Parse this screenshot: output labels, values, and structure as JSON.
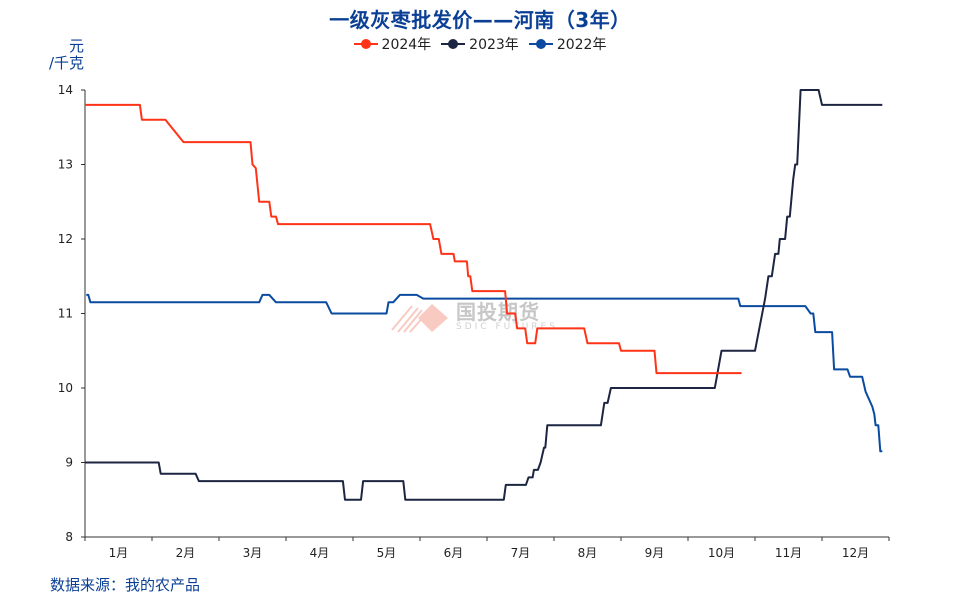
{
  "title": "一级灰枣批发价——河南（3年）",
  "unit_line1": "元",
  "unit_line2": "/千克",
  "source": "数据来源：我的农产品",
  "watermark": {
    "name": "国投期货",
    "sub": "SDIC FUTURES"
  },
  "legend": [
    {
      "label": "2024年",
      "color": "#ff3318"
    },
    {
      "label": "2023年",
      "color": "#1c2541"
    },
    {
      "label": "2022年",
      "color": "#0a4aa0"
    }
  ],
  "chart_data": {
    "type": "line",
    "title": "一级灰枣批发价——河南（3年）",
    "ylabel": "元/千克",
    "xlabel": "",
    "ylim": [
      8,
      14
    ],
    "yticks": [
      8,
      9,
      10,
      11,
      12,
      13,
      14
    ],
    "categories": [
      "1月",
      "2月",
      "3月",
      "4月",
      "5月",
      "6月",
      "7月",
      "8月",
      "9月",
      "10月",
      "11月",
      "12月"
    ],
    "x_unit": "month position (0 = start of Jan, 12 = end of Dec)",
    "grid": false,
    "legend_position": "top",
    "series": [
      {
        "name": "2024年",
        "color": "#ff3318",
        "points": [
          [
            0,
            13.8
          ],
          [
            0.82,
            13.8
          ],
          [
            0.85,
            13.6
          ],
          [
            1.2,
            13.6
          ],
          [
            1.47,
            13.3
          ],
          [
            2.47,
            13.3
          ],
          [
            2.5,
            13.0
          ],
          [
            2.55,
            12.95
          ],
          [
            2.6,
            12.5
          ],
          [
            2.75,
            12.5
          ],
          [
            2.78,
            12.3
          ],
          [
            2.85,
            12.3
          ],
          [
            2.88,
            12.2
          ],
          [
            5.15,
            12.2
          ],
          [
            5.2,
            12.0
          ],
          [
            5.28,
            12.0
          ],
          [
            5.32,
            11.8
          ],
          [
            5.5,
            11.8
          ],
          [
            5.52,
            11.7
          ],
          [
            5.7,
            11.7
          ],
          [
            5.72,
            11.5
          ],
          [
            5.75,
            11.5
          ],
          [
            5.78,
            11.3
          ],
          [
            6.27,
            11.3
          ],
          [
            6.3,
            11.0
          ],
          [
            6.42,
            11.0
          ],
          [
            6.45,
            10.8
          ],
          [
            6.57,
            10.8
          ],
          [
            6.6,
            10.6
          ],
          [
            6.72,
            10.6
          ],
          [
            6.75,
            10.8
          ],
          [
            7.45,
            10.8
          ],
          [
            7.5,
            10.6
          ],
          [
            7.97,
            10.6
          ],
          [
            8.0,
            10.5
          ],
          [
            8.5,
            10.5
          ],
          [
            8.53,
            10.2
          ],
          [
            9.8,
            10.2
          ]
        ]
      },
      {
        "name": "2023年",
        "color": "#1c2541",
        "points": [
          [
            0,
            9.0
          ],
          [
            1.1,
            9.0
          ],
          [
            1.13,
            8.85
          ],
          [
            1.65,
            8.85
          ],
          [
            1.7,
            8.75
          ],
          [
            3.85,
            8.75
          ],
          [
            3.88,
            8.5
          ],
          [
            4.12,
            8.5
          ],
          [
            4.15,
            8.75
          ],
          [
            4.75,
            8.75
          ],
          [
            4.78,
            8.5
          ],
          [
            6.25,
            8.5
          ],
          [
            6.28,
            8.7
          ],
          [
            6.58,
            8.7
          ],
          [
            6.62,
            8.8
          ],
          [
            6.68,
            8.8
          ],
          [
            6.7,
            8.9
          ],
          [
            6.76,
            8.9
          ],
          [
            6.8,
            9.0
          ],
          [
            6.85,
            9.2
          ],
          [
            6.87,
            9.2
          ],
          [
            6.9,
            9.5
          ],
          [
            7.7,
            9.5
          ],
          [
            7.75,
            9.8
          ],
          [
            7.8,
            9.8
          ],
          [
            7.85,
            10.0
          ],
          [
            9.4,
            10.0
          ],
          [
            9.5,
            10.5
          ],
          [
            10.0,
            10.5
          ],
          [
            10.15,
            11.2
          ],
          [
            10.2,
            11.5
          ],
          [
            10.25,
            11.5
          ],
          [
            10.3,
            11.8
          ],
          [
            10.35,
            11.8
          ],
          [
            10.37,
            12.0
          ],
          [
            10.45,
            12.0
          ],
          [
            10.48,
            12.3
          ],
          [
            10.52,
            12.3
          ],
          [
            10.57,
            12.8
          ],
          [
            10.6,
            13.0
          ],
          [
            10.63,
            13.0
          ],
          [
            10.68,
            14.0
          ],
          [
            10.95,
            14.0
          ],
          [
            11.0,
            13.8
          ],
          [
            11.9,
            13.8
          ]
        ]
      },
      {
        "name": "2022年",
        "color": "#0a4aa0",
        "points": [
          [
            0.02,
            11.25
          ],
          [
            0.05,
            11.25
          ],
          [
            0.08,
            11.15
          ],
          [
            2.6,
            11.15
          ],
          [
            2.65,
            11.25
          ],
          [
            2.75,
            11.25
          ],
          [
            2.85,
            11.15
          ],
          [
            3.6,
            11.15
          ],
          [
            3.68,
            11.0
          ],
          [
            4.5,
            11.0
          ],
          [
            4.53,
            11.15
          ],
          [
            4.6,
            11.15
          ],
          [
            4.7,
            11.25
          ],
          [
            4.95,
            11.25
          ],
          [
            5.05,
            11.2
          ],
          [
            9.75,
            11.2
          ],
          [
            9.78,
            11.1
          ],
          [
            10.75,
            11.1
          ],
          [
            10.83,
            11.0
          ],
          [
            10.87,
            11.0
          ],
          [
            10.9,
            10.75
          ],
          [
            11.15,
            10.75
          ],
          [
            11.18,
            10.25
          ],
          [
            11.38,
            10.25
          ],
          [
            11.42,
            10.15
          ],
          [
            11.6,
            10.15
          ],
          [
            11.65,
            9.95
          ],
          [
            11.75,
            9.75
          ],
          [
            11.78,
            9.65
          ],
          [
            11.8,
            9.5
          ],
          [
            11.84,
            9.5
          ],
          [
            11.87,
            9.15
          ],
          [
            11.9,
            9.15
          ]
        ]
      }
    ]
  }
}
